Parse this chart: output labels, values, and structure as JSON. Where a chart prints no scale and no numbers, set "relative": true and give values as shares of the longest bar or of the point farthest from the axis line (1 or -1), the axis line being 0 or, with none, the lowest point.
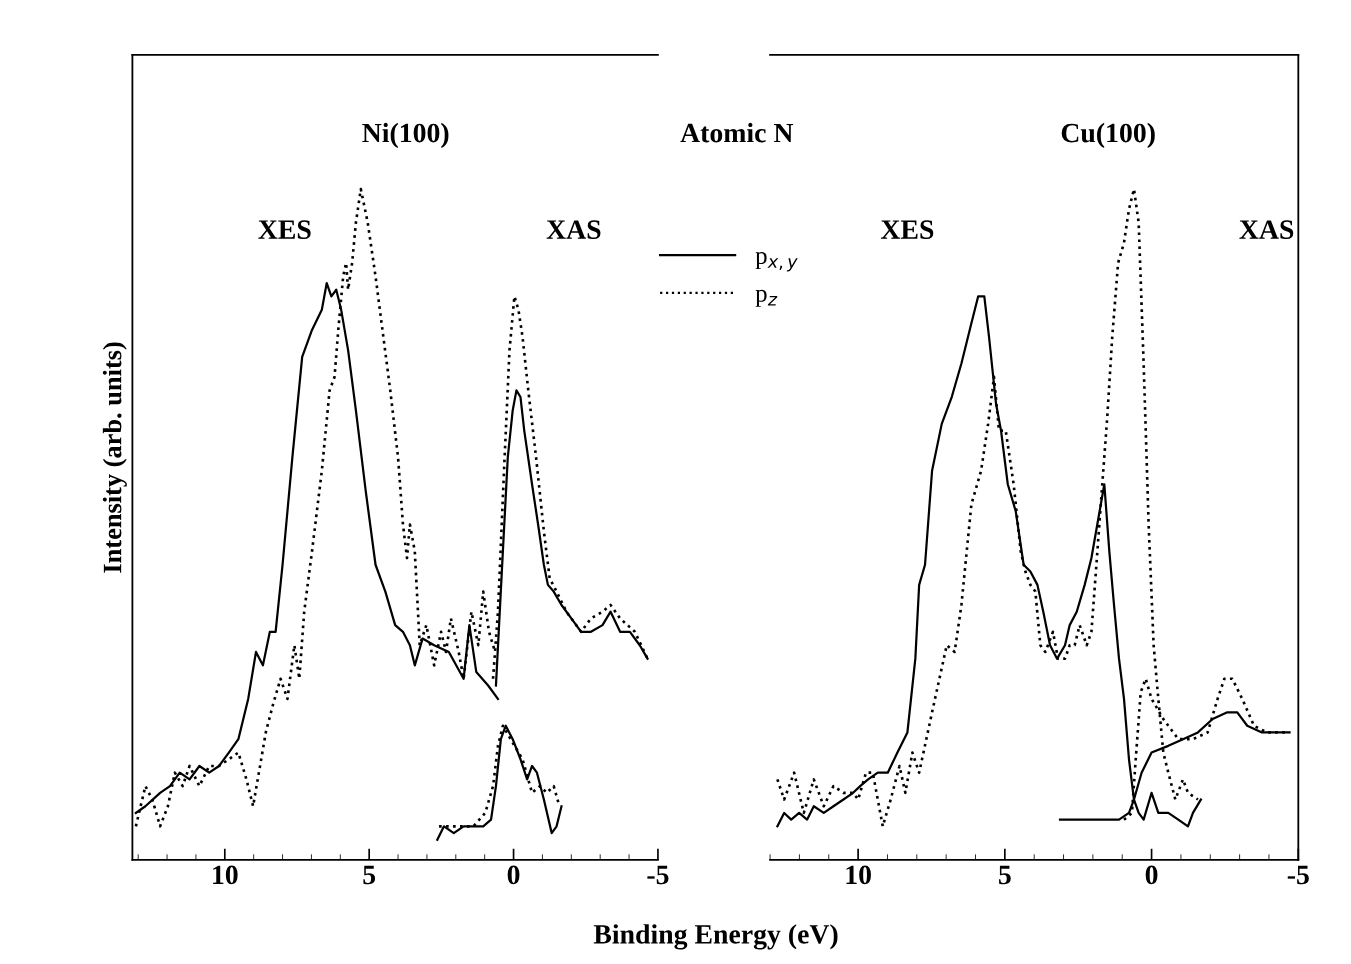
{
  "chart_data": [
    {
      "type": "line",
      "relative": true,
      "ylabel": "Intensity (arb. units)",
      "xlabel": "Binding Energy (eV)",
      "xlim": [
        13.2,
        -5
      ],
      "xticks": [
        10,
        5,
        0,
        -5
      ],
      "tick_labels": "x",
      "grid": false,
      "legend": "top right",
      "annotations": [
        "Ni(100)",
        "XES",
        "XAS",
        "Atomic N"
      ],
      "series": [
        {
          "name": "p$_{x,y}$",
          "color": "#000000",
          "line_style": "solid",
          "x": [
            13.08,
            12.75,
            12.24,
            11.9,
            11.56,
            11.22,
            10.88,
            10.54,
            10.2,
            9.86,
            9.53,
            9.19,
            8.92,
            8.68,
            8.44,
            8.24,
            8.0,
            7.66,
            7.32,
            6.98,
            6.64,
            6.47,
            6.31,
            6.14,
            5.97,
            5.73,
            5.46,
            5.12,
            4.78,
            4.44,
            4.1,
            3.83,
            3.59,
            3.42,
            3.15,
            2.75,
            2.24,
            1.73,
            1.53,
            1.29,
            0.88,
            0.54
          ],
          "values": [
            0.07,
            0.08,
            0.1,
            0.11,
            0.13,
            0.12,
            0.14,
            0.13,
            0.14,
            0.16,
            0.18,
            0.24,
            0.31,
            0.29,
            0.34,
            0.34,
            0.44,
            0.6,
            0.75,
            0.79,
            0.82,
            0.86,
            0.84,
            0.85,
            0.82,
            0.76,
            0.67,
            0.55,
            0.44,
            0.4,
            0.35,
            0.34,
            0.32,
            0.29,
            0.33,
            0.32,
            0.31,
            0.27,
            0.35,
            0.28,
            0.26,
            0.24
          ]
        },
        {
          "name": "p$_{z}$",
          "color": "#000000",
          "line_style": "dotted",
          "x": [
            13.08,
            12.75,
            12.51,
            12.24,
            11.97,
            11.73,
            11.46,
            11.22,
            10.88,
            10.54,
            10.2,
            9.86,
            9.53,
            9.25,
            9.02,
            8.78,
            8.58,
            8.34,
            8.07,
            7.83,
            7.59,
            7.42,
            7.25,
            6.98,
            6.64,
            6.37,
            6.2,
            6.07,
            5.9,
            5.8,
            5.73,
            5.59,
            5.46,
            5.29,
            5.05,
            4.78,
            4.51,
            4.27,
            4.0,
            3.83,
            3.69,
            3.59,
            3.42,
            3.25,
            3.02,
            2.75,
            2.51,
            2.34,
            2.17,
            1.9,
            1.73,
            1.46,
            1.22,
            1.05,
            0.85,
            0.64
          ],
          "values": [
            0.05,
            0.11,
            0.09,
            0.05,
            0.08,
            0.13,
            0.11,
            0.14,
            0.11,
            0.14,
            0.14,
            0.15,
            0.16,
            0.12,
            0.08,
            0.14,
            0.19,
            0.23,
            0.27,
            0.24,
            0.32,
            0.27,
            0.37,
            0.46,
            0.58,
            0.7,
            0.72,
            0.79,
            0.87,
            0.89,
            0.85,
            0.89,
            0.95,
            1.0,
            0.95,
            0.87,
            0.78,
            0.7,
            0.6,
            0.5,
            0.45,
            0.5,
            0.46,
            0.32,
            0.35,
            0.29,
            0.34,
            0.31,
            0.36,
            0.31,
            0.27,
            0.37,
            0.32,
            0.4,
            0.34,
            0.31
          ]
        },
        {
          "color": "#000000",
          "line_style": "solid",
          "x": [
            0.61,
            0.37,
            0.2,
            0.03,
            -0.1,
            -0.24,
            -0.37,
            -0.64,
            -0.85,
            -1.05,
            -1.19,
            -1.39,
            -1.66,
            -2.0,
            -2.34,
            -2.68,
            -3.08,
            -3.36,
            -3.69,
            -4.03,
            -4.37,
            -4.64
          ],
          "values": [
            0.26,
            0.46,
            0.6,
            0.67,
            0.7,
            0.69,
            0.64,
            0.56,
            0.5,
            0.44,
            0.41,
            0.4,
            0.38,
            0.36,
            0.34,
            0.34,
            0.35,
            0.37,
            0.34,
            0.34,
            0.32,
            0.3
          ]
        },
        {
          "color": "#000000",
          "line_style": "dotted",
          "x": [
            0.71,
            0.54,
            0.31,
            0.14,
            -0.03,
            -0.17,
            -0.31,
            -0.51,
            -0.78,
            -1.05,
            -1.25,
            -1.49,
            -1.83,
            -2.34,
            -2.68,
            -3.08,
            -3.36,
            -3.69,
            -4.2,
            -4.64
          ],
          "values": [
            0.27,
            0.37,
            0.6,
            0.76,
            0.84,
            0.82,
            0.78,
            0.7,
            0.6,
            0.49,
            0.42,
            0.4,
            0.37,
            0.34,
            0.36,
            0.37,
            0.38,
            0.36,
            0.34,
            0.3
          ]
        },
        {
          "color": "#000000",
          "line_style": "solid",
          "x": [
            2.64,
            2.41,
            2.07,
            1.73,
            1.39,
            1.05,
            0.78,
            0.61,
            0.44,
            0.27,
            0.03,
            -0.24,
            -0.47,
            -0.64,
            -0.81,
            -1.05,
            -1.32,
            -1.49,
            -1.66
          ],
          "values": [
            0.03,
            0.05,
            0.04,
            0.05,
            0.05,
            0.05,
            0.06,
            0.11,
            0.18,
            0.2,
            0.18,
            0.15,
            0.12,
            0.14,
            0.13,
            0.09,
            0.04,
            0.05,
            0.08
          ]
        },
        {
          "color": "#000000",
          "line_style": "dotted",
          "x": [
            2.58,
            2.07,
            1.39,
            0.98,
            0.71,
            0.54,
            0.37,
            0.1,
            -0.31,
            -0.64,
            -0.92,
            -1.15,
            -1.39,
            -1.59
          ],
          "values": [
            0.05,
            0.05,
            0.05,
            0.07,
            0.11,
            0.17,
            0.2,
            0.18,
            0.15,
            0.1,
            0.11,
            0.1,
            0.11,
            0.08
          ]
        }
      ]
    },
    {
      "type": "line",
      "relative": true,
      "xlim": [
        13.0,
        -5
      ],
      "xticks": [
        10,
        5,
        0,
        -5
      ],
      "tick_labels": "x",
      "grid": false,
      "annotations": [
        "Cu(100)",
        "XES",
        "XAS"
      ],
      "series": [
        {
          "color": "#000000",
          "line_style": "solid",
          "x": [
            12.75,
            12.52,
            12.28,
            12.01,
            11.74,
            11.51,
            11.17,
            10.84,
            10.5,
            10.17,
            9.93,
            9.66,
            9.33,
            8.99,
            8.66,
            8.32,
            8.05,
            7.92,
            7.72,
            7.48,
            7.15,
            6.81,
            6.48,
            6.14,
            5.91,
            5.7,
            5.54,
            5.3,
            5.13,
            4.9,
            4.63,
            4.36,
            4.13,
            3.89,
            3.69,
            3.46,
            3.22,
            2.95,
            2.79,
            2.55,
            2.28,
            2.05,
            1.85,
            1.61,
            1.44,
            1.28,
            1.11,
            0.94,
            0.77,
            0.6,
            0.44,
            0.27,
            0.0,
            -0.23,
            -0.57,
            -0.91,
            -1.24,
            -1.41,
            -1.68
          ],
          "values": [
            0.05,
            0.07,
            0.06,
            0.07,
            0.06,
            0.08,
            0.07,
            0.08,
            0.09,
            0.1,
            0.11,
            0.12,
            0.13,
            0.13,
            0.16,
            0.19,
            0.3,
            0.41,
            0.44,
            0.58,
            0.65,
            0.69,
            0.74,
            0.8,
            0.84,
            0.84,
            0.78,
            0.68,
            0.64,
            0.56,
            0.52,
            0.44,
            0.43,
            0.41,
            0.37,
            0.32,
            0.3,
            0.32,
            0.35,
            0.37,
            0.41,
            0.45,
            0.5,
            0.56,
            0.46,
            0.38,
            0.3,
            0.24,
            0.15,
            0.09,
            0.07,
            0.06,
            0.1,
            0.07,
            0.07,
            0.06,
            0.05,
            0.07,
            0.09
          ]
        },
        {
          "color": "#000000",
          "line_style": "dotted",
          "x": [
            12.75,
            12.52,
            12.18,
            11.85,
            11.51,
            11.17,
            10.84,
            10.5,
            10.17,
            10.0,
            9.73,
            9.5,
            9.16,
            8.89,
            8.59,
            8.39,
            8.15,
            7.92,
            7.48,
            6.98,
            6.71,
            6.48,
            6.14,
            5.81,
            5.57,
            5.37,
            5.2,
            4.97,
            4.7,
            4.46,
            4.3,
            4.13,
            3.96,
            3.79,
            3.62,
            3.36,
            3.19,
            2.95,
            2.79,
            2.62,
            2.45,
            2.21,
            2.05,
            1.88,
            1.68,
            1.51,
            1.34,
            1.14,
            0.94,
            0.77,
            0.6,
            0.44,
            0.27,
            0.1,
            -0.07,
            -0.23,
            -0.4,
            -0.57,
            -0.81,
            -1.07,
            -1.24,
            -1.58
          ],
          "values": [
            0.12,
            0.09,
            0.13,
            0.07,
            0.12,
            0.08,
            0.11,
            0.1,
            0.1,
            0.09,
            0.13,
            0.13,
            0.05,
            0.09,
            0.14,
            0.1,
            0.16,
            0.13,
            0.22,
            0.32,
            0.31,
            0.38,
            0.53,
            0.58,
            0.65,
            0.72,
            0.64,
            0.64,
            0.56,
            0.46,
            0.43,
            0.41,
            0.4,
            0.32,
            0.31,
            0.34,
            0.3,
            0.3,
            0.32,
            0.32,
            0.35,
            0.32,
            0.34,
            0.44,
            0.56,
            0.66,
            0.78,
            0.89,
            0.92,
            0.97,
            1.0,
            0.95,
            0.74,
            0.5,
            0.32,
            0.24,
            0.16,
            0.13,
            0.09,
            0.12,
            0.1,
            0.09
          ]
        },
        {
          "color": "#000000",
          "line_style": "solid",
          "x": [
            3.12,
            2.79,
            2.28,
            1.61,
            1.11,
            0.77,
            0.6,
            0.34,
            0.0,
            -0.57,
            -1.07,
            -1.58,
            -2.08,
            -2.58,
            -2.92,
            -3.26,
            -3.76,
            -4.7
          ],
          "values": [
            0.06,
            0.06,
            0.06,
            0.06,
            0.06,
            0.07,
            0.09,
            0.13,
            0.16,
            0.17,
            0.18,
            0.19,
            0.21,
            0.22,
            0.22,
            0.2,
            0.19,
            0.19
          ]
        },
        {
          "color": "#000000",
          "line_style": "dotted",
          "x": [
            0.94,
            0.67,
            0.54,
            0.37,
            0.2,
            0.0,
            -0.4,
            -0.91,
            -1.41,
            -1.91,
            -2.25,
            -2.48,
            -2.75,
            -3.09,
            -3.49,
            -3.93,
            -4.7
          ],
          "values": [
            0.06,
            0.07,
            0.15,
            0.25,
            0.27,
            0.24,
            0.21,
            0.18,
            0.18,
            0.19,
            0.24,
            0.27,
            0.27,
            0.24,
            0.2,
            0.19,
            0.19
          ]
        }
      ]
    }
  ]
}
